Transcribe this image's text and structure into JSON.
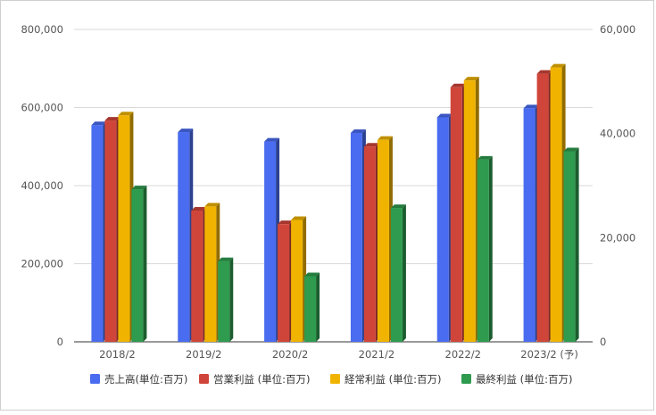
{
  "chart_data": {
    "type": "bar",
    "categories": [
      "2018/2",
      "2019/2",
      "2020/2",
      "2021/2",
      "2022/2",
      "2023/2 (予)"
    ],
    "left_axis": {
      "ylim": [
        0,
        800000
      ],
      "ticks": [
        "0",
        "200,000",
        "400,000",
        "600,000",
        "800,000"
      ]
    },
    "right_axis": {
      "ylim": [
        0,
        60000
      ],
      "ticks": [
        "0",
        "20,000",
        "40,000",
        "60,000"
      ]
    },
    "series": [
      {
        "name": "売上高(単位:百万)",
        "axis": "left",
        "color": "#4a6cf0",
        "values": [
          555000,
          537000,
          513000,
          535000,
          575000,
          598000
        ]
      },
      {
        "name": "営業利益 (単位:百万)",
        "axis": "right",
        "color": "#d0453a",
        "values": [
          42500,
          25200,
          22600,
          37500,
          48900,
          51500
        ]
      },
      {
        "name": "経常利益 (単位:百万)",
        "axis": "right",
        "color": "#f0b400",
        "values": [
          43500,
          26000,
          23400,
          38800,
          50200,
          52700
        ]
      },
      {
        "name": "最終利益 (単位:百万)",
        "axis": "right",
        "color": "#2e9b4e",
        "values": [
          29300,
          15500,
          12600,
          25700,
          35000,
          36600
        ]
      }
    ],
    "grid": true,
    "legend": "bottom"
  }
}
